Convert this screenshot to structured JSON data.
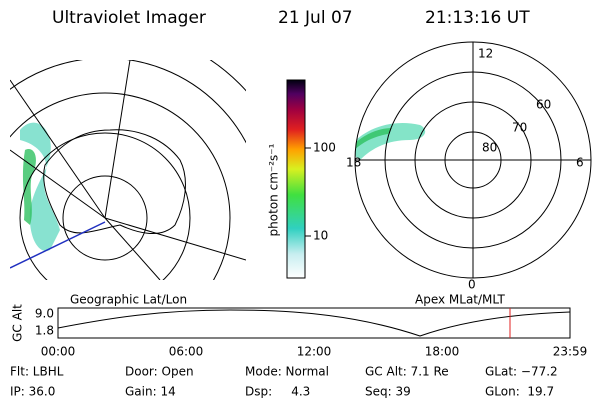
{
  "header": {
    "title": "Ultraviolet Imager",
    "date": "21 Jul 07",
    "time": "21:13:16 UT"
  },
  "colorbar": {
    "label": "photon cm⁻²s⁻¹",
    "ticks": [
      "10",
      "100"
    ]
  },
  "polar": {
    "top": "12",
    "right": "6",
    "left": "18",
    "bottom": "0",
    "rings": [
      "60",
      "70",
      "80"
    ]
  },
  "map_label": "Geographic Lat/Lon",
  "polar_label": "Apex MLat/MLT",
  "altitude_plot": {
    "axis_label": "GC Alt",
    "yticks": [
      "9.0",
      "1.8"
    ],
    "xticks": [
      "00:00",
      "06:00",
      "12:00",
      "18:00",
      "23:59"
    ]
  },
  "status": [
    [
      "Flt: LBHL",
      "Door: Open",
      "Mode: Normal",
      "GC Alt: 7.1 Re",
      "GLat: −77.2"
    ],
    [
      "IP: 36.0",
      "Gain: 14",
      "Dsp:     4.3",
      "Seq: 39",
      "GLon:  19.7"
    ]
  ]
}
